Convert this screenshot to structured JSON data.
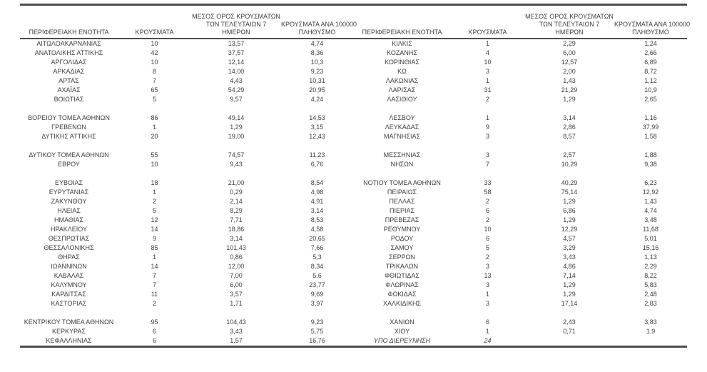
{
  "colors": {
    "border": "#4d4d4d",
    "text": "#3d3d3d",
    "background": "#ffffff"
  },
  "chart_data": {
    "type": "table",
    "layout": "two-panel-side-by-side",
    "headers": {
      "region": "ΠΕΡΙΦΕΡΕΙΑΚΗ ΕΝΟΤΗΤΑ",
      "cases": "ΚΡΟΥΣΜΑΤΑ",
      "avg7_line1": "ΜΕΣΟΣ ΟΡΟΣ ΚΡΟΥΣΜΑΤΩΝ",
      "avg7_line2": "ΤΩΝ ΤΕΛΕΥΤΑΙΩΝ 7",
      "avg7_line3": "ΗΜΕΡΩΝ",
      "per100k_line1": "ΚΡΟΥΣΜΑΤΑ ΑΝΑ 100000",
      "per100k_line2": "ΠΛΗΘΥΣΜΟ"
    },
    "panels": [
      {
        "rows": [
          {
            "name": "ΑΙΤΩΛΟΑΚΑΡΝΑΝΙΑΣ",
            "cases": "10",
            "avg7": "13,57",
            "per100k": "4,74"
          },
          {
            "name": "ΑΝΑΤΟΛΙΚΗΣ ΑΤΤΙΚΗΣ",
            "cases": "42",
            "avg7": "37,57",
            "per100k": "8,36"
          },
          {
            "name": "ΑΡΓΟΛΙΔΑΣ",
            "cases": "10",
            "avg7": "12,14",
            "per100k": "10,3"
          },
          {
            "name": "ΑΡΚΑΔΙΑΣ",
            "cases": "8",
            "avg7": "14,00",
            "per100k": "9,23"
          },
          {
            "name": "ΑΡΤΑΣ",
            "cases": "7",
            "avg7": "4,43",
            "per100k": "10,31"
          },
          {
            "name": "ΑΧΑΪΑΣ",
            "cases": "65",
            "avg7": "54,29",
            "per100k": "20,95"
          },
          {
            "name": "ΒΟΙΩΤΙΑΣ",
            "cases": "5",
            "avg7": "9,57",
            "per100k": "4,24"
          },
          {
            "blank": true
          },
          {
            "name": "ΒΟΡΕΙΟΥ ΤΟΜΕΑ ΑΘΗΝΩΝ",
            "cases": "86",
            "avg7": "49,14",
            "per100k": "14,53"
          },
          {
            "name": "ΓΡΕΒΕΝΩΝ",
            "cases": "1",
            "avg7": "1,29",
            "per100k": "3,15"
          },
          {
            "name": "ΔΥΤΙΚΗΣ ΑΤΤΙΚΗΣ",
            "cases": "20",
            "avg7": "19,00",
            "per100k": "12,43"
          },
          {
            "blank": true
          },
          {
            "name": "ΔΥΤΙΚΟΥ ΤΟΜΕΑ ΑΘΗΝΩΝ",
            "cases": "55",
            "avg7": "74,57",
            "per100k": "11,23"
          },
          {
            "name": "ΕΒΡΟΥ",
            "cases": "10",
            "avg7": "9,43",
            "per100k": "6,76"
          },
          {
            "blank": true
          },
          {
            "name": "ΕΥΒΟΙΑΣ",
            "cases": "18",
            "avg7": "21,00",
            "per100k": "8,54"
          },
          {
            "name": "ΕΥΡΥΤΑΝΙΑΣ",
            "cases": "1",
            "avg7": "0,29",
            "per100k": "4,98"
          },
          {
            "name": "ΖΑΚΥΝΘΟΥ",
            "cases": "2",
            "avg7": "2,14",
            "per100k": "4,91"
          },
          {
            "name": "ΗΛΕΙΑΣ",
            "cases": "5",
            "avg7": "8,29",
            "per100k": "3,14"
          },
          {
            "name": "ΗΜΑΘΙΑΣ",
            "cases": "12",
            "avg7": "7,71",
            "per100k": "8,53"
          },
          {
            "name": "ΗΡΑΚΛΕΙΟΥ",
            "cases": "14",
            "avg7": "18,86",
            "per100k": "4,58"
          },
          {
            "name": "ΘΕΣΠΡΩΤΙΑΣ",
            "cases": "9",
            "avg7": "3,14",
            "per100k": "20,65"
          },
          {
            "name": "ΘΕΣΣΑΛΟΝΙΚΗΣ",
            "cases": "85",
            "avg7": "101,43",
            "per100k": "7,66"
          },
          {
            "name": "ΘΗΡΑΣ",
            "cases": "1",
            "avg7": "0,86",
            "per100k": "5,3"
          },
          {
            "name": "ΙΩΑΝΝΙΝΩΝ",
            "cases": "14",
            "avg7": "12,00",
            "per100k": "8,34"
          },
          {
            "name": "ΚΑΒΑΛΑΣ",
            "cases": "7",
            "avg7": "7,00",
            "per100k": "5,6"
          },
          {
            "name": "ΚΑΛΥΜΝΟΥ",
            "cases": "7",
            "avg7": "6,00",
            "per100k": "23,77"
          },
          {
            "name": "ΚΑΡΔΙΤΣΑΣ",
            "cases": "11",
            "avg7": "3,57",
            "per100k": "9,69"
          },
          {
            "name": "ΚΑΣΤΟΡΙΑΣ",
            "cases": "2",
            "avg7": "1,71",
            "per100k": "3,97"
          },
          {
            "blank": true
          },
          {
            "name": "ΚΕΝΤΡΙΚΟΥ ΤΟΜΕΑ ΑΘΗΝΩΝ",
            "cases": "95",
            "avg7": "104,43",
            "per100k": "9,23"
          },
          {
            "name": "ΚΕΡΚΥΡΑΣ",
            "cases": "6",
            "avg7": "3,43",
            "per100k": "5,75"
          },
          {
            "name": "ΚΕΦΑΛΛΗΝΙΑΣ",
            "cases": "6",
            "avg7": "1,57",
            "per100k": "16,76"
          }
        ]
      },
      {
        "rows": [
          {
            "name": "ΚΙΛΚΙΣ",
            "cases": "1",
            "avg7": "2,29",
            "per100k": "1,24"
          },
          {
            "name": "ΚΟΖΑΝΗΣ",
            "cases": "4",
            "avg7": "6,00",
            "per100k": "2,66"
          },
          {
            "name": "ΚΟΡΙΝΘΙΑΣ",
            "cases": "10",
            "avg7": "12,57",
            "per100k": "6,89"
          },
          {
            "name": "ΚΩ",
            "cases": "3",
            "avg7": "2,00",
            "per100k": "8,72"
          },
          {
            "name": "ΛΑΚΩΝΙΑΣ",
            "cases": "1",
            "avg7": "1,43",
            "per100k": "1,12"
          },
          {
            "name": "ΛΑΡΙΣΑΣ",
            "cases": "31",
            "avg7": "21,29",
            "per100k": "10,9"
          },
          {
            "name": "ΛΑΣΙΘΙΟΥ",
            "cases": "2",
            "avg7": "1,29",
            "per100k": "2,65"
          },
          {
            "blank": true
          },
          {
            "name": "ΛΕΣΒΟΥ",
            "cases": "1",
            "avg7": "3,14",
            "per100k": "1,16"
          },
          {
            "name": "ΛΕΥΚΑΔΑΣ",
            "cases": "9",
            "avg7": "2,86",
            "per100k": "37,99"
          },
          {
            "name": "ΜΑΓΝΗΣΙΑΣ",
            "cases": "3",
            "avg7": "8,57",
            "per100k": "1,58"
          },
          {
            "blank": true
          },
          {
            "name": "ΜΕΣΣΗΝΙΑΣ",
            "cases": "3",
            "avg7": "2,57",
            "per100k": "1,88"
          },
          {
            "name": "ΝΗΣΩΝ",
            "cases": "7",
            "avg7": "10,29",
            "per100k": "9,38"
          },
          {
            "blank": true
          },
          {
            "name": "ΝΟΤΙΟΥ ΤΟΜΕΑ ΑΘΗΝΩΝ",
            "cases": "33",
            "avg7": "40,29",
            "per100k": "6,23"
          },
          {
            "name": "ΠΕΙΡΑΙΩΣ",
            "cases": "58",
            "avg7": "75,14",
            "per100k": "12,92"
          },
          {
            "name": "ΠΕΛΛΑΣ",
            "cases": "2",
            "avg7": "1,29",
            "per100k": "1,43"
          },
          {
            "name": "ΠΙΕΡΙΑΣ",
            "cases": "6",
            "avg7": "6,86",
            "per100k": "4,74"
          },
          {
            "name": "ΠΡΕΒΕΖΑΣ",
            "cases": "2",
            "avg7": "1,29",
            "per100k": "3,48"
          },
          {
            "name": "ΡΕΘΥΜΝΟΥ",
            "cases": "10",
            "avg7": "12,29",
            "per100k": "11,68"
          },
          {
            "name": "ΡΟΔΟΥ",
            "cases": "6",
            "avg7": "4,57",
            "per100k": "5,01"
          },
          {
            "name": "ΣΑΜΟΥ",
            "cases": "5",
            "avg7": "3,29",
            "per100k": "15,16"
          },
          {
            "name": "ΣΕΡΡΩΝ",
            "cases": "2",
            "avg7": "3,43",
            "per100k": "1,13"
          },
          {
            "name": "ΤΡΙΚΑΛΩΝ",
            "cases": "3",
            "avg7": "4,86",
            "per100k": "2,29"
          },
          {
            "name": "ΦΘΙΩΤΙΔΑΣ",
            "cases": "13",
            "avg7": "7,14",
            "per100k": "8,22"
          },
          {
            "name": "ΦΛΩΡΙΝΑΣ",
            "cases": "3",
            "avg7": "1,29",
            "per100k": "5,83"
          },
          {
            "name": "ΦΩΚΙΔΑΣ",
            "cases": "1",
            "avg7": "1,29",
            "per100k": "2,48"
          },
          {
            "name": "ΧΑΛΚΙΔΙΚΗΣ",
            "cases": "3",
            "avg7": "17,14",
            "per100k": "2,83"
          },
          {
            "blank": true
          },
          {
            "name": "ΧΑΝΙΩΝ",
            "cases": "6",
            "avg7": "2,43",
            "per100k": "3,83"
          },
          {
            "name": "ΧΙΟΥ",
            "cases": "1",
            "avg7": "0,71",
            "per100k": "1,9"
          },
          {
            "name": "ΥΠΟ ΔΙΕΡΕΥΝΗΣΗ",
            "cases": "24",
            "avg7": "",
            "per100k": "",
            "italic": true
          }
        ]
      }
    ]
  }
}
